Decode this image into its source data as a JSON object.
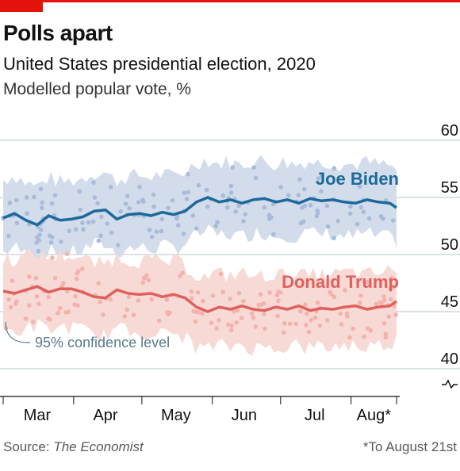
{
  "header": {
    "title": "Polls apart",
    "subtitle": "United States presidential election, 2020",
    "unit": "Modelled popular vote, %"
  },
  "footer": {
    "source_prefix": "Source: ",
    "source_name": "The Economist",
    "note": "*To August 21st"
  },
  "colors": {
    "accent": "#e3120b",
    "biden": "#1b6a9b",
    "biden_band": "#d3dcea",
    "biden_dots": "#a9bbd8",
    "trump": "#e0605c",
    "trump_band": "#f7d9d5",
    "trump_dots": "#f2b3ad",
    "grid": "#b7c6c9",
    "axis": "#121212"
  },
  "chart_data": {
    "type": "line",
    "title": "Polls apart",
    "subtitle": "United States presidential election, 2020",
    "ylabel": "Modelled popular vote, %",
    "ylim": [
      40,
      60
    ],
    "yticks": [
      40,
      45,
      50,
      55,
      60
    ],
    "y_axis_broken": true,
    "grid": true,
    "x_start": "2020-03-01",
    "x_end": "2020-08-21",
    "month_labels": [
      "Mar",
      "Apr",
      "May",
      "Jun",
      "Jul",
      "Aug*"
    ],
    "annotation": "95% confidence level",
    "series": [
      {
        "name": "Joe Biden",
        "color": "#1b6a9b",
        "points": [
          [
            "2020-03-01",
            53.2
          ],
          [
            "2020-03-06",
            53.6
          ],
          [
            "2020-03-11",
            53.0
          ],
          [
            "2020-03-16",
            52.6
          ],
          [
            "2020-03-21",
            53.4
          ],
          [
            "2020-03-26",
            53.0
          ],
          [
            "2020-03-31",
            53.1
          ],
          [
            "2020-04-05",
            53.3
          ],
          [
            "2020-04-10",
            53.8
          ],
          [
            "2020-04-15",
            53.9
          ],
          [
            "2020-04-20",
            53.1
          ],
          [
            "2020-04-25",
            53.5
          ],
          [
            "2020-04-30",
            53.6
          ],
          [
            "2020-05-05",
            53.4
          ],
          [
            "2020-05-10",
            53.7
          ],
          [
            "2020-05-15",
            53.5
          ],
          [
            "2020-05-20",
            53.8
          ],
          [
            "2020-05-25",
            54.6
          ],
          [
            "2020-05-30",
            55.0
          ],
          [
            "2020-06-04",
            54.6
          ],
          [
            "2020-06-09",
            54.8
          ],
          [
            "2020-06-14",
            54.5
          ],
          [
            "2020-06-19",
            54.8
          ],
          [
            "2020-06-24",
            54.9
          ],
          [
            "2020-06-29",
            54.6
          ],
          [
            "2020-07-04",
            54.8
          ],
          [
            "2020-07-09",
            54.5
          ],
          [
            "2020-07-14",
            54.9
          ],
          [
            "2020-07-19",
            54.7
          ],
          [
            "2020-07-24",
            54.8
          ],
          [
            "2020-07-29",
            54.6
          ],
          [
            "2020-08-03",
            54.5
          ],
          [
            "2020-08-08",
            54.8
          ],
          [
            "2020-08-13",
            54.6
          ],
          [
            "2020-08-18",
            54.5
          ],
          [
            "2020-08-21",
            54.1
          ]
        ],
        "ci_lower": 51.1,
        "ci_upper": 57.4
      },
      {
        "name": "Donald Trump",
        "color": "#e0605c",
        "points": [
          [
            "2020-03-01",
            46.8
          ],
          [
            "2020-03-06",
            46.6
          ],
          [
            "2020-03-11",
            46.9
          ],
          [
            "2020-03-16",
            47.2
          ],
          [
            "2020-03-21",
            46.7
          ],
          [
            "2020-03-26",
            47.0
          ],
          [
            "2020-03-31",
            47.0
          ],
          [
            "2020-04-05",
            46.7
          ],
          [
            "2020-04-10",
            46.3
          ],
          [
            "2020-04-15",
            46.2
          ],
          [
            "2020-04-20",
            46.9
          ],
          [
            "2020-04-25",
            46.6
          ],
          [
            "2020-04-30",
            46.5
          ],
          [
            "2020-05-05",
            46.6
          ],
          [
            "2020-05-10",
            46.3
          ],
          [
            "2020-05-15",
            46.5
          ],
          [
            "2020-05-20",
            46.2
          ],
          [
            "2020-05-25",
            45.4
          ],
          [
            "2020-05-30",
            45.0
          ],
          [
            "2020-06-04",
            45.4
          ],
          [
            "2020-06-09",
            45.2
          ],
          [
            "2020-06-14",
            45.5
          ],
          [
            "2020-06-19",
            45.2
          ],
          [
            "2020-06-24",
            45.1
          ],
          [
            "2020-06-29",
            45.4
          ],
          [
            "2020-07-04",
            45.2
          ],
          [
            "2020-07-09",
            45.5
          ],
          [
            "2020-07-14",
            45.1
          ],
          [
            "2020-07-19",
            45.3
          ],
          [
            "2020-07-24",
            45.2
          ],
          [
            "2020-07-29",
            45.4
          ],
          [
            "2020-08-03",
            45.5
          ],
          [
            "2020-08-08",
            45.2
          ],
          [
            "2020-08-13",
            45.4
          ],
          [
            "2020-08-18",
            45.5
          ],
          [
            "2020-08-21",
            45.9
          ]
        ],
        "ci_lower": 42.6,
        "ci_upper": 48.9
      }
    ]
  }
}
